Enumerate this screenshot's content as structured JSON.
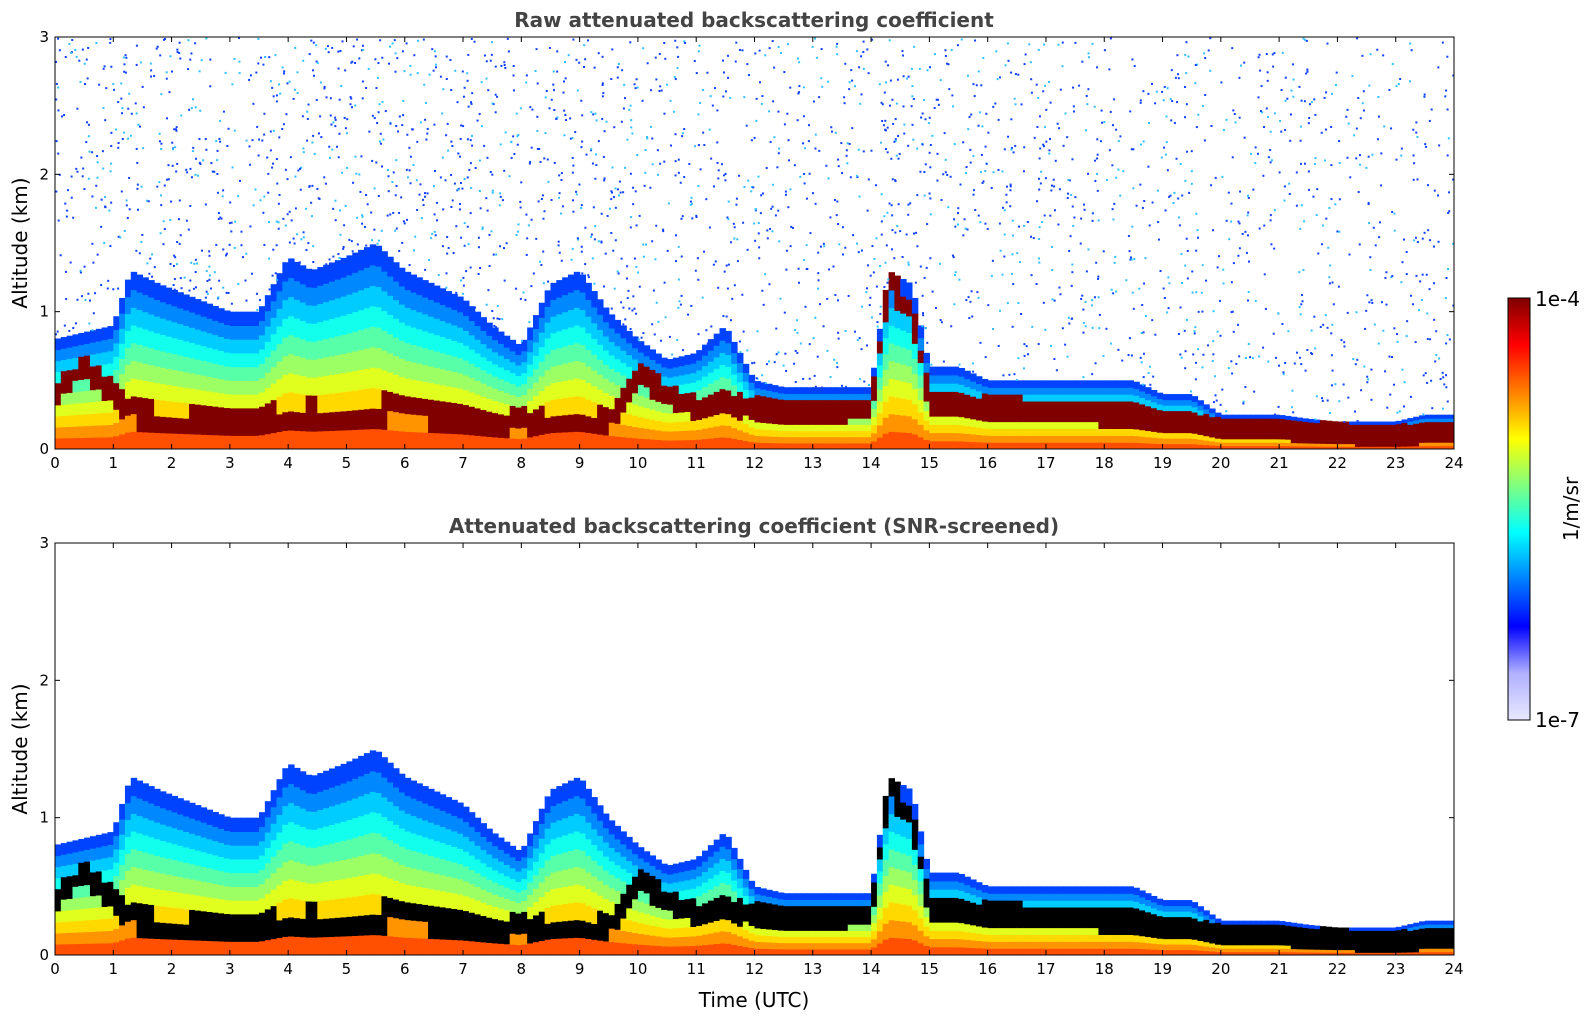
{
  "chart_data": [
    {
      "type": "heatmap",
      "title": "Raw attenuated backscattering coefficient",
      "xlabel": "",
      "ylabel": "Altitude (km)",
      "xlim": [
        0,
        24
      ],
      "ylim": [
        0,
        3
      ],
      "xticks": [
        "0",
        "1",
        "2",
        "3",
        "4",
        "5",
        "6",
        "7",
        "8",
        "9",
        "10",
        "11",
        "12",
        "13",
        "14",
        "15",
        "16",
        "17",
        "18",
        "19",
        "20",
        "21",
        "22",
        "23",
        "24"
      ],
      "yticks": [
        "0",
        "1",
        "2",
        "3"
      ],
      "screened": false,
      "profile": {
        "time": [
          0,
          0.5,
          1,
          1.3,
          1.8,
          2.4,
          3,
          3.5,
          4,
          4.4,
          5,
          5.5,
          6,
          6.5,
          7,
          7.5,
          8,
          8.5,
          9,
          9.5,
          10,
          10.5,
          11,
          11.5,
          12,
          12.5,
          13,
          13.5,
          14,
          14.3,
          14.7,
          15,
          15.5,
          16,
          16.5,
          17,
          17.5,
          18,
          18.5,
          19,
          19.5,
          20,
          20.5,
          21,
          21.5,
          22,
          22.5,
          23,
          23.5,
          24
        ],
        "layer_top_km": [
          0.8,
          0.85,
          0.9,
          1.3,
          1.2,
          1.1,
          1.0,
          1.0,
          1.4,
          1.3,
          1.4,
          1.5,
          1.3,
          1.2,
          1.1,
          0.9,
          0.75,
          1.2,
          1.3,
          1.0,
          0.8,
          0.65,
          0.7,
          0.9,
          0.5,
          0.45,
          0.45,
          0.45,
          0.45,
          1.3,
          1.2,
          0.6,
          0.6,
          0.5,
          0.5,
          0.5,
          0.5,
          0.5,
          0.5,
          0.4,
          0.4,
          0.25,
          0.25,
          0.25,
          0.22,
          0.2,
          0.2,
          0.2,
          0.25,
          0.25
        ],
        "strong_layer_km": [
          0.4,
          0.6,
          0.4,
          0.3,
          0.2,
          0.2,
          0.2,
          0.2,
          0.25,
          0.25,
          0.25,
          0.25,
          0.35,
          0.25,
          0.2,
          0.2,
          0.2,
          0.2,
          0.2,
          0.2,
          0.55,
          0.4,
          0.3,
          0.35,
          0.3,
          0.28,
          0.28,
          0.28,
          0.3,
          1.2,
          1.0,
          0.35,
          0.33,
          0.3,
          0.3,
          0.28,
          0.28,
          0.25,
          0.25,
          0.22,
          0.2,
          0.15,
          0.15,
          0.15,
          0.12,
          0.12,
          0.1,
          0.1,
          0.12,
          0.12
        ]
      }
    },
    {
      "type": "heatmap",
      "title": "Attenuated backscattering coefficient (SNR-screened)",
      "xlabel": "Time (UTC)",
      "ylabel": "Altitude (km)",
      "xlim": [
        0,
        24
      ],
      "ylim": [
        0,
        3
      ],
      "xticks": [
        "0",
        "1",
        "2",
        "3",
        "4",
        "5",
        "6",
        "7",
        "8",
        "9",
        "10",
        "11",
        "12",
        "13",
        "14",
        "15",
        "16",
        "17",
        "18",
        "19",
        "20",
        "21",
        "22",
        "23",
        "24"
      ],
      "yticks": [
        "0",
        "1",
        "2",
        "3"
      ],
      "screened": true,
      "profile": {
        "time": [
          0,
          0.5,
          1,
          1.3,
          1.8,
          2.4,
          3,
          3.5,
          4,
          4.4,
          5,
          5.5,
          6,
          6.5,
          7,
          7.5,
          8,
          8.5,
          9,
          9.5,
          10,
          10.5,
          11,
          11.5,
          12,
          12.5,
          13,
          13.5,
          14,
          14.3,
          14.7,
          15,
          15.5,
          16,
          16.5,
          17,
          17.5,
          18,
          18.5,
          19,
          19.5,
          20,
          20.5,
          21,
          21.5,
          22,
          22.5,
          23,
          23.5,
          24
        ],
        "layer_top_km": [
          0.8,
          0.85,
          0.9,
          1.3,
          1.2,
          1.1,
          1.0,
          1.0,
          1.4,
          1.3,
          1.4,
          1.5,
          1.3,
          1.2,
          1.1,
          0.9,
          0.75,
          1.2,
          1.3,
          1.0,
          0.8,
          0.65,
          0.7,
          0.9,
          0.5,
          0.45,
          0.45,
          0.45,
          0.45,
          1.3,
          1.2,
          0.6,
          0.6,
          0.5,
          0.5,
          0.5,
          0.5,
          0.5,
          0.5,
          0.4,
          0.4,
          0.25,
          0.25,
          0.25,
          0.22,
          0.2,
          0.2,
          0.2,
          0.25,
          0.25
        ],
        "strong_layer_km": [
          0.4,
          0.6,
          0.4,
          0.3,
          0.2,
          0.2,
          0.2,
          0.2,
          0.25,
          0.25,
          0.25,
          0.25,
          0.35,
          0.25,
          0.2,
          0.2,
          0.2,
          0.2,
          0.2,
          0.2,
          0.55,
          0.4,
          0.3,
          0.35,
          0.3,
          0.28,
          0.28,
          0.28,
          0.3,
          1.2,
          1.0,
          0.35,
          0.33,
          0.3,
          0.3,
          0.28,
          0.28,
          0.25,
          0.25,
          0.22,
          0.2,
          0.15,
          0.15,
          0.15,
          0.12,
          0.12,
          0.1,
          0.1,
          0.12,
          0.12
        ]
      }
    }
  ],
  "colorbar": {
    "label": "1/m/sr",
    "max_label": "1e-4",
    "min_label": "1e-7",
    "scale": "log",
    "range": [
      1e-07,
      0.0001
    ],
    "colormap": "jet",
    "colors": [
      "#e8e8ff",
      "#b0b0ff",
      "#0000ff",
      "#0080ff",
      "#00ffff",
      "#80ff80",
      "#ffff00",
      "#ff8000",
      "#ff0000",
      "#800000"
    ]
  }
}
